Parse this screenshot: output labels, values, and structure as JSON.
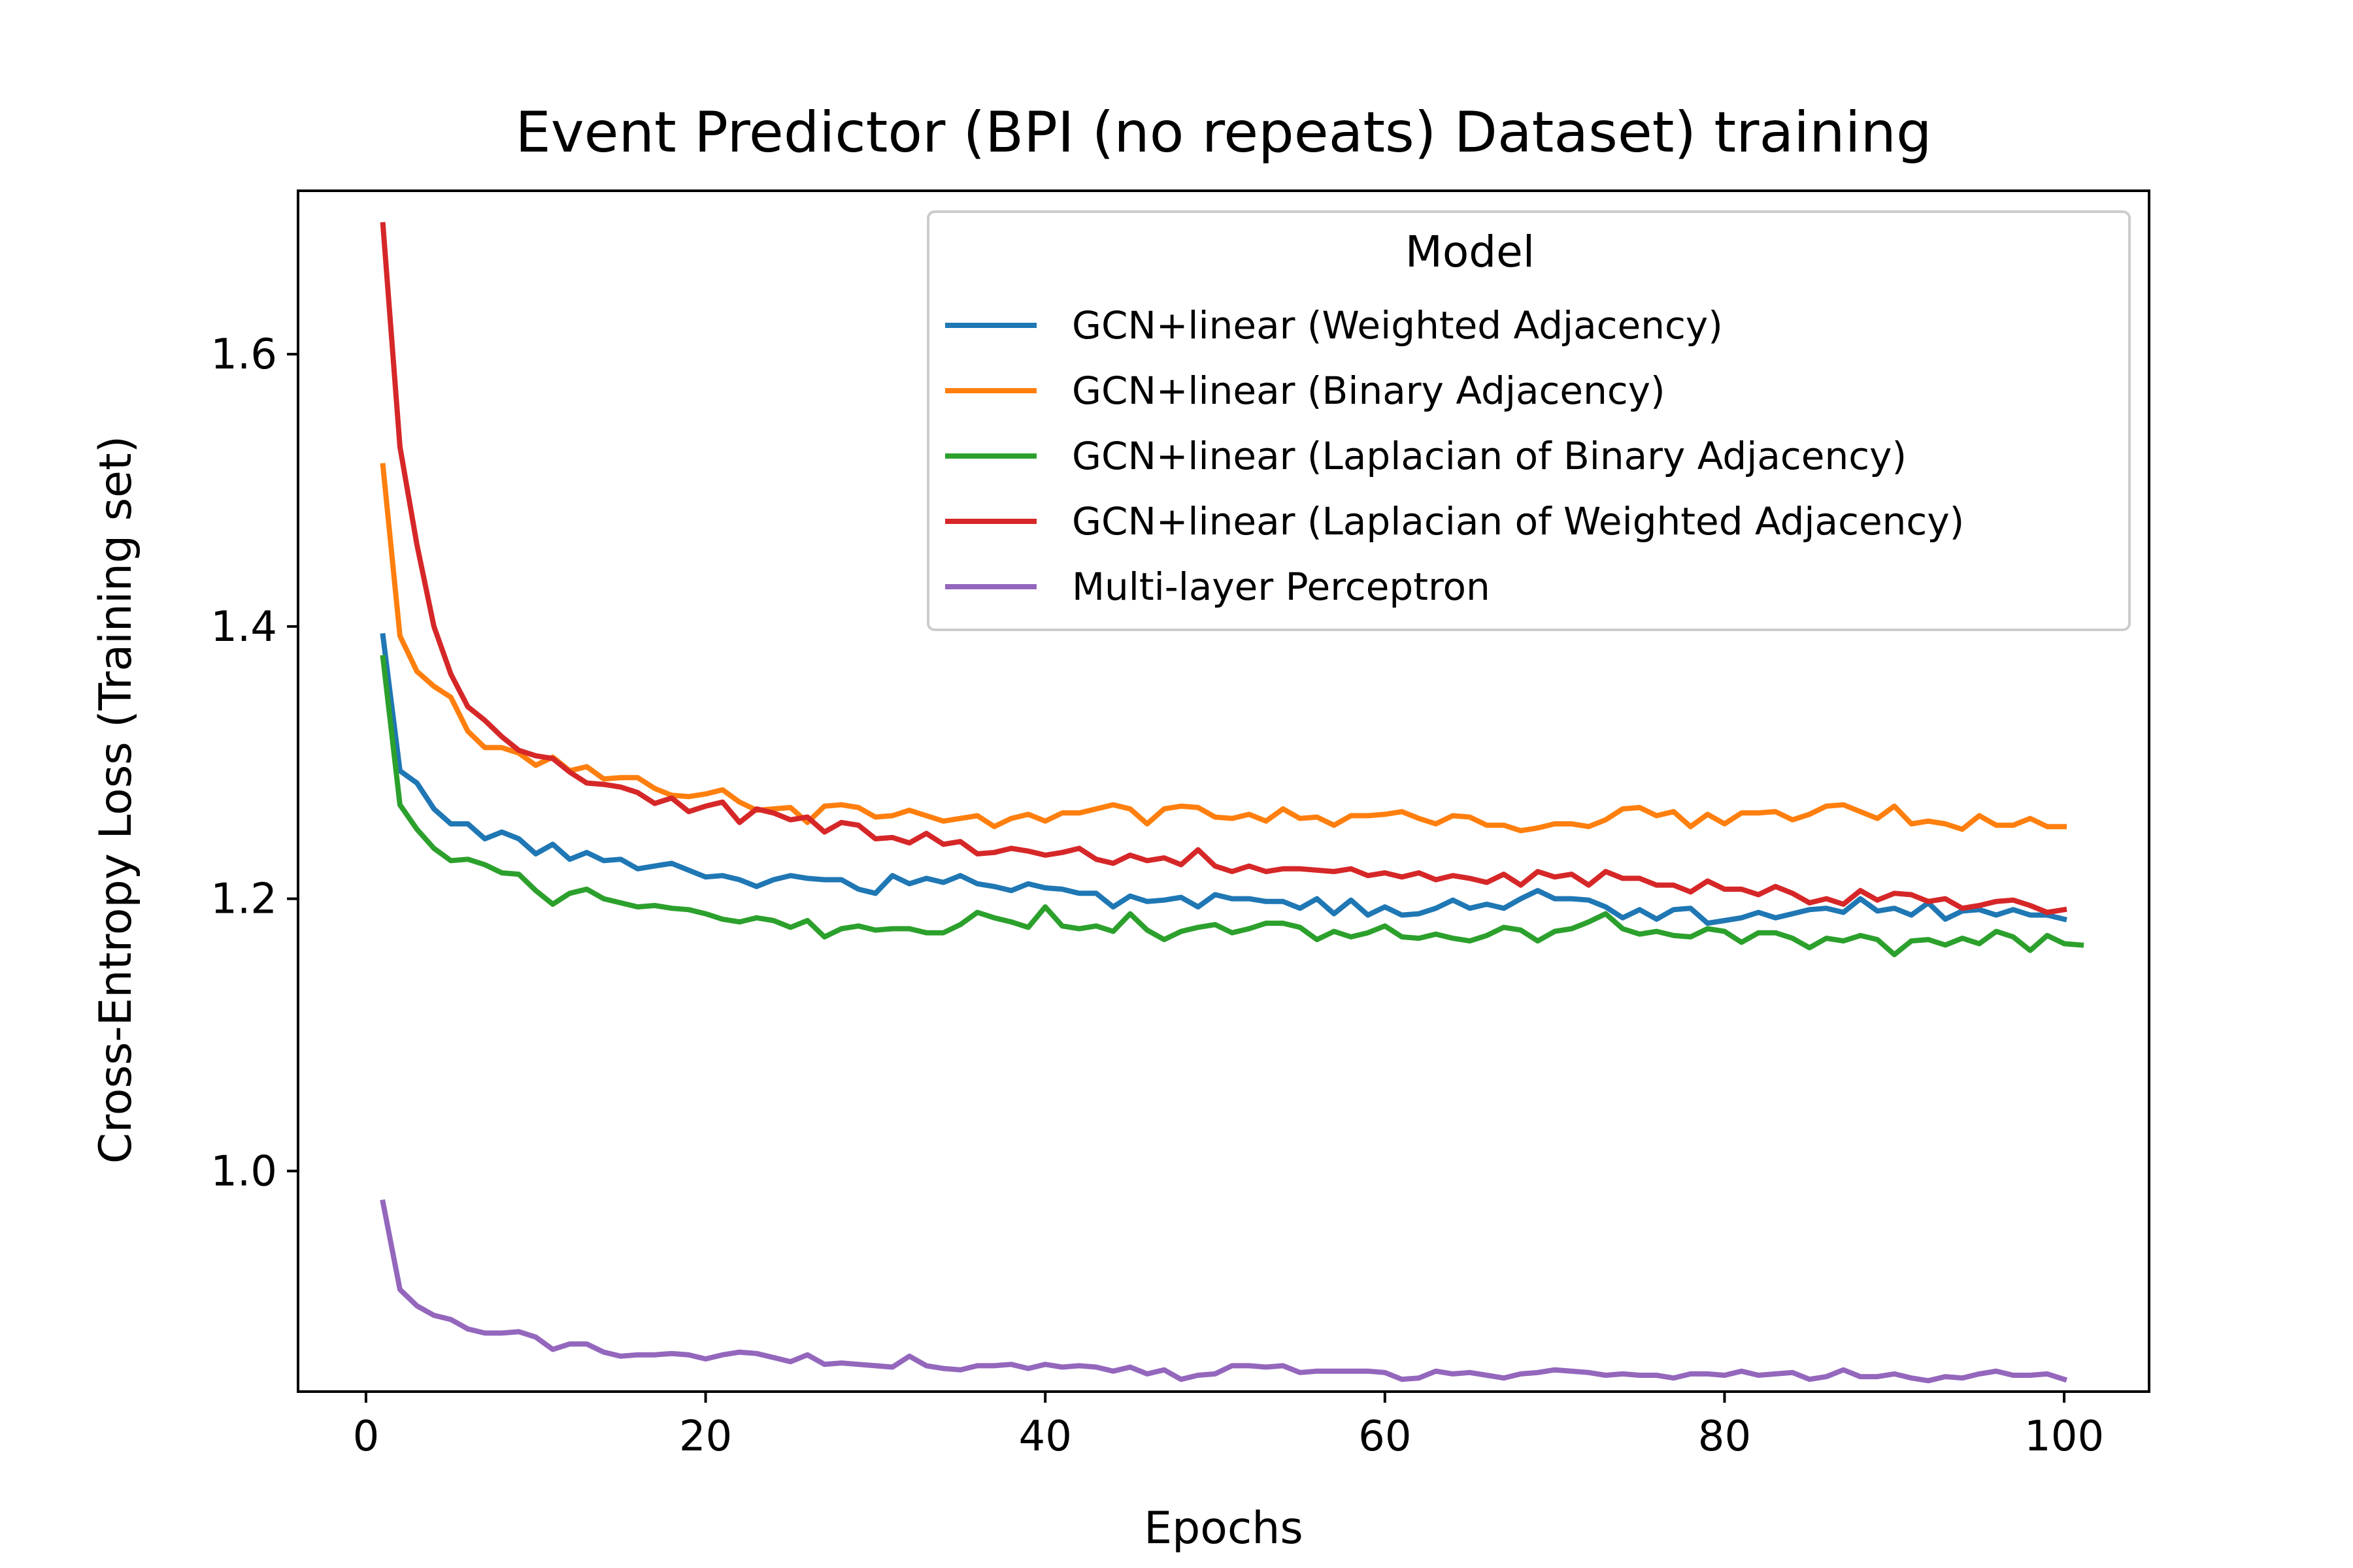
{
  "chart_data": {
    "type": "line",
    "title": "Event Predictor (BPI (no repeats) Dataset) training",
    "xlabel": "Epochs",
    "ylabel": "Cross-Entropy Loss (Training set)",
    "xlim": [
      -4,
      105
    ],
    "ylim": [
      0.838,
      1.72
    ],
    "xticks": [
      0,
      20,
      40,
      60,
      80,
      100
    ],
    "xtick_labels": [
      "0",
      "20",
      "40",
      "60",
      "80",
      "100"
    ],
    "yticks": [
      1.0,
      1.2,
      1.4,
      1.6
    ],
    "ytick_labels": [
      "1.0",
      "1.2",
      "1.4",
      "1.6"
    ],
    "grid": false,
    "legend": {
      "title": "Model",
      "placement": "top-right"
    },
    "series": [
      {
        "name": "GCN+linear (Weighted Adjacency)",
        "color": "#1f77b4",
        "x_start": 1,
        "values": [
          1.393,
          1.294,
          1.285,
          1.266,
          1.255,
          1.255,
          1.244,
          1.249,
          1.244,
          1.233,
          1.24,
          1.229,
          1.234,
          1.228,
          1.229,
          1.222,
          1.224,
          1.226,
          1.221,
          1.216,
          1.217,
          1.214,
          1.209,
          1.214,
          1.217,
          1.215,
          1.214,
          1.214,
          1.207,
          1.204,
          1.217,
          1.211,
          1.215,
          1.212,
          1.217,
          1.211,
          1.209,
          1.206,
          1.211,
          1.208,
          1.207,
          1.204,
          1.204,
          1.194,
          1.202,
          1.198,
          1.199,
          1.201,
          1.194,
          1.203,
          1.2,
          1.2,
          1.198,
          1.198,
          1.193,
          1.2,
          1.189,
          1.199,
          1.188,
          1.194,
          1.188,
          1.189,
          1.193,
          1.199,
          1.193,
          1.196,
          1.193,
          1.2,
          1.206,
          1.2,
          1.2,
          1.199,
          1.194,
          1.186,
          1.192,
          1.185,
          1.192,
          1.193,
          1.182,
          1.184,
          1.186,
          1.19,
          1.186,
          1.189,
          1.192,
          1.193,
          1.19,
          1.2,
          1.191,
          1.193,
          1.188,
          1.197,
          1.185,
          1.191,
          1.192,
          1.188,
          1.192,
          1.188,
          1.188,
          1.185
        ]
      },
      {
        "name": "GCN+linear (Binary Adjacency)",
        "color": "#ff7f0e",
        "x_start": 1,
        "values": [
          1.518,
          1.393,
          1.367,
          1.356,
          1.348,
          1.323,
          1.311,
          1.311,
          1.307,
          1.298,
          1.304,
          1.294,
          1.297,
          1.288,
          1.289,
          1.289,
          1.281,
          1.276,
          1.275,
          1.277,
          1.28,
          1.271,
          1.265,
          1.266,
          1.267,
          1.256,
          1.268,
          1.269,
          1.267,
          1.26,
          1.261,
          1.265,
          1.261,
          1.257,
          1.259,
          1.261,
          1.253,
          1.259,
          1.262,
          1.257,
          1.263,
          1.263,
          1.266,
          1.269,
          1.266,
          1.255,
          1.266,
          1.268,
          1.267,
          1.26,
          1.259,
          1.262,
          1.257,
          1.266,
          1.259,
          1.26,
          1.254,
          1.261,
          1.261,
          1.262,
          1.264,
          1.259,
          1.255,
          1.261,
          1.26,
          1.254,
          1.254,
          1.25,
          1.252,
          1.255,
          1.255,
          1.253,
          1.258,
          1.266,
          1.267,
          1.261,
          1.264,
          1.253,
          1.262,
          1.255,
          1.263,
          1.263,
          1.264,
          1.258,
          1.262,
          1.268,
          1.269,
          1.264,
          1.259,
          1.268,
          1.255,
          1.257,
          1.255,
          1.251,
          1.261,
          1.254,
          1.254,
          1.259,
          1.253,
          1.253
        ]
      },
      {
        "name": "GCN+linear (Laplacian of Binary Adjacency)",
        "color": "#2ca02c",
        "x_start": 1,
        "values": [
          1.377,
          1.269,
          1.251,
          1.237,
          1.228,
          1.229,
          1.225,
          1.219,
          1.218,
          1.206,
          1.196,
          1.204,
          1.207,
          1.2,
          1.197,
          1.194,
          1.195,
          1.193,
          1.192,
          1.189,
          1.185,
          1.183,
          1.186,
          1.184,
          1.179,
          1.184,
          1.172,
          1.178,
          1.18,
          1.177,
          1.178,
          1.178,
          1.175,
          1.175,
          1.181,
          1.19,
          1.186,
          1.183,
          1.179,
          1.194,
          1.18,
          1.178,
          1.18,
          1.176,
          1.189,
          1.177,
          1.17,
          1.176,
          1.179,
          1.181,
          1.175,
          1.178,
          1.182,
          1.182,
          1.179,
          1.17,
          1.176,
          1.172,
          1.175,
          1.18,
          1.172,
          1.171,
          1.174,
          1.171,
          1.169,
          1.173,
          1.179,
          1.177,
          1.169,
          1.176,
          1.178,
          1.183,
          1.189,
          1.178,
          1.174,
          1.176,
          1.173,
          1.172,
          1.178,
          1.176,
          1.168,
          1.175,
          1.175,
          1.171,
          1.164,
          1.171,
          1.169,
          1.173,
          1.17,
          1.159,
          1.169,
          1.17,
          1.166,
          1.171,
          1.167,
          1.176,
          1.172,
          1.162,
          1.173,
          1.167,
          1.166
        ]
      },
      {
        "name": "GCN+linear (Laplacian of Weighted Adjacency)",
        "color": "#d62728",
        "x_start": 1,
        "values": [
          1.695,
          1.532,
          1.46,
          1.4,
          1.365,
          1.341,
          1.331,
          1.319,
          1.309,
          1.305,
          1.303,
          1.293,
          1.285,
          1.284,
          1.282,
          1.278,
          1.27,
          1.274,
          1.264,
          1.268,
          1.271,
          1.256,
          1.266,
          1.263,
          1.258,
          1.26,
          1.249,
          1.256,
          1.254,
          1.244,
          1.245,
          1.241,
          1.248,
          1.24,
          1.242,
          1.233,
          1.234,
          1.237,
          1.235,
          1.232,
          1.234,
          1.237,
          1.229,
          1.226,
          1.232,
          1.228,
          1.23,
          1.225,
          1.236,
          1.224,
          1.22,
          1.224,
          1.22,
          1.222,
          1.222,
          1.221,
          1.22,
          1.222,
          1.217,
          1.219,
          1.216,
          1.219,
          1.214,
          1.217,
          1.215,
          1.212,
          1.218,
          1.21,
          1.22,
          1.216,
          1.218,
          1.21,
          1.22,
          1.215,
          1.215,
          1.21,
          1.21,
          1.205,
          1.213,
          1.207,
          1.207,
          1.203,
          1.209,
          1.204,
          1.197,
          1.2,
          1.196,
          1.206,
          1.199,
          1.204,
          1.203,
          1.198,
          1.2,
          1.193,
          1.195,
          1.198,
          1.199,
          1.195,
          1.19,
          1.192
        ]
      },
      {
        "name": "Multi-layer Perceptron",
        "color": "#9467bd",
        "x_start": 1,
        "values": [
          0.977,
          0.913,
          0.901,
          0.894,
          0.891,
          0.884,
          0.881,
          0.881,
          0.882,
          0.878,
          0.869,
          0.873,
          0.873,
          0.867,
          0.864,
          0.865,
          0.865,
          0.866,
          0.865,
          0.862,
          0.865,
          0.867,
          0.866,
          0.863,
          0.86,
          0.865,
          0.858,
          0.859,
          0.858,
          0.857,
          0.856,
          0.864,
          0.857,
          0.855,
          0.854,
          0.857,
          0.857,
          0.858,
          0.855,
          0.858,
          0.856,
          0.857,
          0.856,
          0.853,
          0.856,
          0.851,
          0.854,
          0.847,
          0.85,
          0.851,
          0.857,
          0.857,
          0.856,
          0.857,
          0.852,
          0.853,
          0.853,
          0.853,
          0.853,
          0.852,
          0.847,
          0.848,
          0.853,
          0.851,
          0.852,
          0.85,
          0.848,
          0.851,
          0.852,
          0.854,
          0.853,
          0.852,
          0.85,
          0.851,
          0.85,
          0.85,
          0.848,
          0.851,
          0.851,
          0.85,
          0.853,
          0.85,
          0.851,
          0.852,
          0.847,
          0.849,
          0.854,
          0.849,
          0.849,
          0.851,
          0.848,
          0.846,
          0.849,
          0.848,
          0.851,
          0.853,
          0.85,
          0.85,
          0.851,
          0.847
        ]
      }
    ]
  }
}
